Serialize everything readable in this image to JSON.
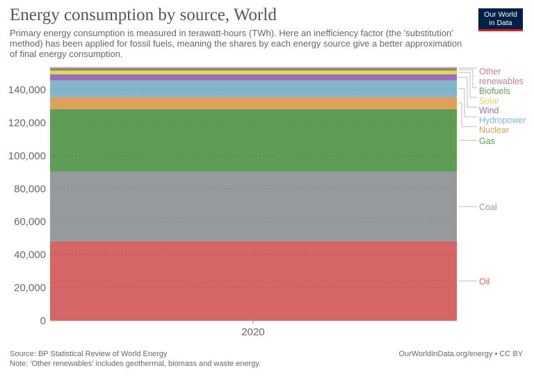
{
  "title": "Energy consumption by source, World",
  "subtitle": "Primary energy consumption is measured in terawatt-hours (TWh). Here an inefficiency factor (the 'substitution' method) has been applied for fossil fuels, meaning the shares by each energy source give a better approximation of final energy consumption.",
  "logo": {
    "line1": "Our World",
    "line2": "in Data"
  },
  "footer": {
    "source": "Source: BP Statistical Review of World Energy",
    "note": "Note: 'Other renewables' includes geothermal, biomass and waste energy.",
    "credit": "OurWorldInData.org/energy • CC BY"
  },
  "chart_data": {
    "type": "area",
    "stacked": true,
    "x": [
      "2020"
    ],
    "ylim": [
      0,
      155000
    ],
    "yticks": [
      0,
      20000,
      40000,
      60000,
      80000,
      100000,
      120000,
      140000
    ],
    "ytick_labels": [
      "0",
      "20,000",
      "40,000",
      "60,000",
      "80,000",
      "100,000",
      "120,000",
      "140,000"
    ],
    "grid": true,
    "legend": "right",
    "series": [
      {
        "name": "Oil",
        "values": [
          48100
        ],
        "color": "#d66565"
      },
      {
        "name": "Coal",
        "values": [
          42200
        ],
        "color": "#979a9d"
      },
      {
        "name": "Gas",
        "values": [
          38000
        ],
        "color": "#5f9c55"
      },
      {
        "name": "Nuclear",
        "values": [
          7200
        ],
        "color": "#e09f5a"
      },
      {
        "name": "Hydropower",
        "values": [
          10100
        ],
        "color": "#83b5cd"
      },
      {
        "name": "Wind",
        "values": [
          3800
        ],
        "color": "#9b6fb0"
      },
      {
        "name": "Solar",
        "values": [
          2200
        ],
        "color": "#e2d55c"
      },
      {
        "name": "Biofuels",
        "values": [
          1100
        ],
        "color": "#6d9e55"
      },
      {
        "name": "Other renewables",
        "values": [
          900
        ],
        "color": "#c97b95"
      }
    ]
  }
}
